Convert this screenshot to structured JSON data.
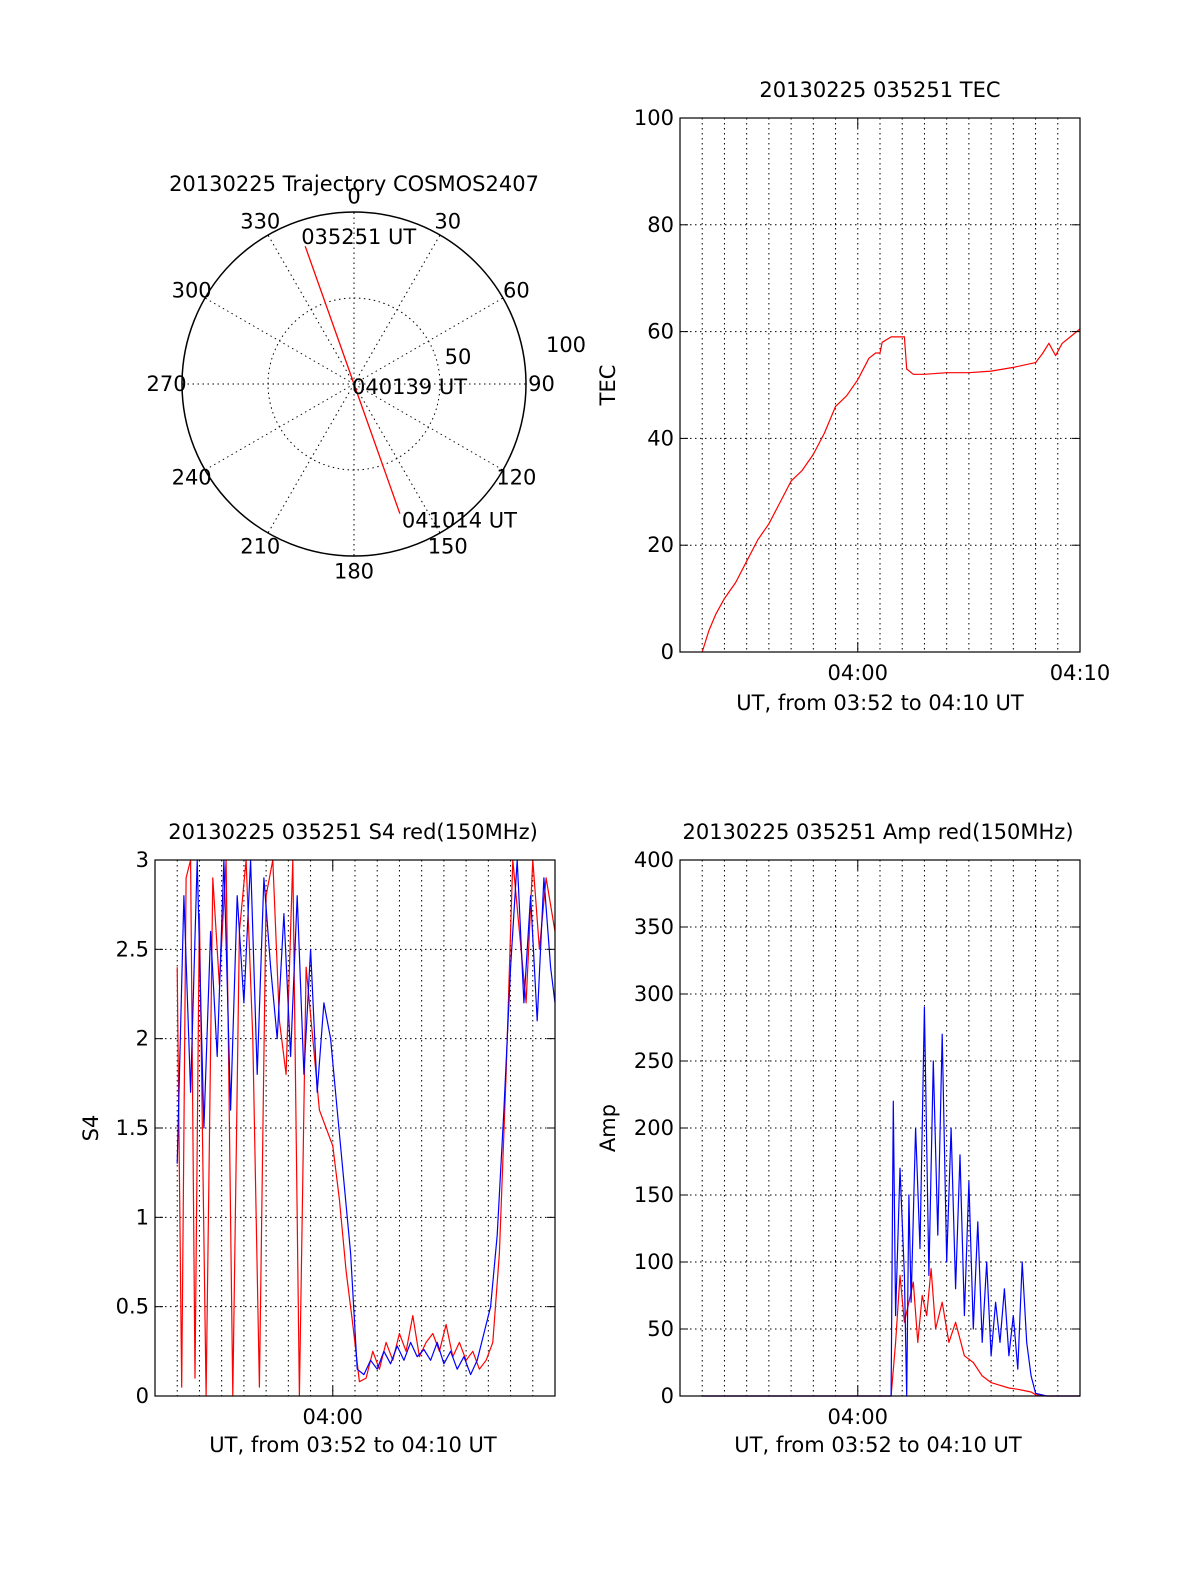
{
  "colors": {
    "red": "#ff0000",
    "blue": "#0000ff",
    "axis": "#000000",
    "background": "#ffffff"
  },
  "chart_data": [
    {
      "id": "polar",
      "type": "polar-trajectory",
      "title": "20130225 Trajectory COSMOS2407",
      "angle_labels": [
        "0",
        "30",
        "60",
        "90",
        "120",
        "150",
        "180",
        "210",
        "240",
        "270",
        "300",
        "330"
      ],
      "angles_deg": [
        0,
        30,
        60,
        90,
        120,
        150,
        180,
        210,
        240,
        270,
        300,
        330
      ],
      "radial_labels": [
        "50",
        "100"
      ],
      "radial_values": [
        50,
        100
      ],
      "rmax": 100,
      "point_labels": [
        "035251 UT",
        "040139 UT",
        "041014 UT"
      ],
      "trajectory": [
        {
          "az": 340.5,
          "r": 85
        },
        {
          "az": 340.5,
          "r": 3
        },
        {
          "az": 160.5,
          "r": 3
        },
        {
          "az": 160.5,
          "r": 80
        }
      ]
    },
    {
      "id": "tec",
      "type": "line",
      "title": "20130225 035251 TEC",
      "xlabel": "UT, from 03:52 to 04:10 UT",
      "ylabel": "TEC",
      "xlim": [
        232,
        250
      ],
      "ylim": [
        0,
        100
      ],
      "yticks": [
        0,
        20,
        40,
        60,
        80,
        100
      ],
      "ytick_labels": [
        "0",
        "20",
        "40",
        "60",
        "80",
        "100"
      ],
      "xticks": [
        240,
        250
      ],
      "xtick_labels": [
        "04:00",
        "04:10"
      ],
      "series": [
        {
          "color": "#ff0000",
          "x": [
            233.0,
            233.3,
            233.6,
            234.0,
            234.5,
            235.0,
            235.5,
            236.0,
            236.5,
            237.0,
            237.5,
            238.0,
            238.5,
            239.0,
            239.5,
            240.0,
            240.5,
            240.8,
            241.0,
            241.1,
            241.5,
            241.9,
            242.1,
            242.2,
            242.5,
            243.0,
            244.0,
            245.0,
            246.0,
            247.0,
            248.0,
            248.3,
            248.6,
            248.9,
            249.2,
            249.5,
            250.0
          ],
          "y": [
            0,
            4,
            7,
            10,
            13,
            17,
            21,
            24,
            28,
            32,
            34,
            37,
            41,
            46,
            48,
            51,
            55,
            56,
            56,
            58,
            59,
            59,
            59,
            53,
            52,
            52,
            52.3,
            52.3,
            52.6,
            53.3,
            54.2,
            55.8,
            57.8,
            55.5,
            57.8,
            58.8,
            60.5
          ]
        }
      ]
    },
    {
      "id": "s4",
      "type": "line",
      "title": "20130225 035251 S4 red(150MHz)",
      "xlabel": "UT, from 03:52 to 04:10 UT",
      "ylabel": "S4",
      "xlim": [
        232,
        250
      ],
      "ylim": [
        0,
        3
      ],
      "yticks": [
        0,
        0.5,
        1,
        1.5,
        2,
        2.5,
        3
      ],
      "ytick_labels": [
        "0",
        "0.5",
        "1",
        "1.5",
        "2",
        "2.5",
        "3"
      ],
      "xticks": [
        240
      ],
      "xtick_labels": [
        "04:00"
      ],
      "series": [
        {
          "color": "#ff0000",
          "x": [
            233.0,
            233.2,
            233.4,
            233.6,
            233.8,
            234.0,
            234.3,
            234.6,
            234.9,
            235.2,
            235.5,
            235.8,
            236.1,
            236.4,
            236.7,
            237.0,
            237.3,
            237.6,
            237.9,
            238.2,
            238.5,
            238.8,
            239.1,
            239.4,
            239.7,
            240.0,
            240.3,
            240.6,
            240.9,
            241.2,
            241.5,
            241.8,
            242.1,
            242.4,
            242.7,
            243.0,
            243.3,
            243.6,
            243.9,
            244.2,
            244.5,
            244.8,
            245.1,
            245.4,
            245.7,
            246.0,
            246.3,
            246.6,
            246.9,
            247.2,
            247.5,
            247.8,
            248.1,
            248.4,
            248.7,
            249.0,
            249.3,
            249.6,
            250.0
          ],
          "y": [
            2.4,
            0.05,
            2.9,
            3.0,
            0.1,
            2.7,
            0.0,
            2.9,
            2.3,
            3.0,
            0.0,
            2.6,
            3.0,
            2.0,
            0.05,
            2.8,
            3.0,
            2.1,
            1.8,
            3.0,
            0.0,
            2.4,
            2.0,
            1.6,
            1.5,
            1.4,
            1.1,
            0.7,
            0.4,
            0.08,
            0.1,
            0.25,
            0.15,
            0.3,
            0.2,
            0.35,
            0.25,
            0.45,
            0.22,
            0.3,
            0.35,
            0.25,
            0.4,
            0.22,
            0.3,
            0.2,
            0.25,
            0.15,
            0.2,
            0.3,
            0.8,
            1.8,
            3.0,
            2.6,
            2.2,
            3.0,
            2.5,
            2.9,
            2.6
          ]
        },
        {
          "color": "#0000ff",
          "x": [
            233.0,
            233.3,
            233.6,
            233.9,
            234.2,
            234.5,
            234.8,
            235.1,
            235.4,
            235.7,
            236.0,
            236.3,
            236.6,
            236.9,
            237.2,
            237.5,
            237.8,
            238.1,
            238.4,
            238.7,
            239.0,
            239.3,
            239.6,
            239.9,
            240.2,
            240.5,
            240.8,
            241.1,
            241.4,
            241.7,
            242.0,
            242.3,
            242.6,
            242.9,
            243.2,
            243.5,
            243.8,
            244.1,
            244.4,
            244.7,
            245.0,
            245.3,
            245.6,
            245.9,
            246.2,
            246.5,
            246.8,
            247.1,
            247.4,
            247.7,
            248.0,
            248.3,
            248.6,
            248.9,
            249.2,
            249.5,
            249.8,
            250.0
          ],
          "y": [
            1.3,
            2.8,
            1.7,
            3.0,
            1.5,
            2.6,
            1.9,
            3.0,
            1.6,
            2.8,
            2.2,
            3.0,
            1.8,
            2.9,
            2.4,
            2.0,
            2.7,
            1.9,
            2.8,
            1.8,
            2.5,
            1.7,
            2.2,
            2.0,
            1.6,
            1.2,
            0.8,
            0.15,
            0.12,
            0.2,
            0.15,
            0.25,
            0.18,
            0.28,
            0.2,
            0.3,
            0.22,
            0.26,
            0.2,
            0.3,
            0.18,
            0.25,
            0.15,
            0.22,
            0.12,
            0.2,
            0.35,
            0.5,
            0.9,
            1.6,
            2.4,
            3.0,
            2.2,
            2.8,
            2.1,
            2.9,
            2.4,
            2.2
          ]
        }
      ]
    },
    {
      "id": "amp",
      "type": "line",
      "title": "20130225 035251 Amp red(150MHz)",
      "xlabel": "UT, from 03:52 to 04:10 UT",
      "ylabel": "Amp",
      "xlim": [
        232,
        250
      ],
      "ylim": [
        0,
        400
      ],
      "yticks": [
        0,
        50,
        100,
        150,
        200,
        250,
        300,
        350,
        400
      ],
      "ytick_labels": [
        "0",
        "50",
        "100",
        "150",
        "200",
        "250",
        "300",
        "350",
        "400"
      ],
      "xticks": [
        240
      ],
      "xtick_labels": [
        "04:00"
      ],
      "series": [
        {
          "color": "#ff0000",
          "x": [
            233.0,
            238.0,
            241.5,
            241.7,
            241.9,
            242.1,
            242.3,
            242.5,
            242.7,
            242.9,
            243.1,
            243.3,
            243.5,
            243.8,
            244.1,
            244.4,
            244.8,
            245.2,
            245.6,
            246.0,
            246.4,
            246.8,
            247.2,
            247.5,
            247.8,
            248.0,
            248.5,
            249.0,
            250.0
          ],
          "y": [
            0,
            0,
            0,
            40,
            90,
            55,
            70,
            85,
            40,
            75,
            60,
            95,
            50,
            70,
            40,
            55,
            30,
            25,
            15,
            10,
            8,
            6,
            5,
            4,
            3,
            1,
            0,
            0,
            0
          ]
        },
        {
          "color": "#0000ff",
          "x": [
            233.0,
            238.0,
            241.5,
            241.6,
            241.7,
            241.9,
            242.1,
            242.2,
            242.3,
            242.4,
            242.6,
            242.8,
            243.0,
            243.2,
            243.4,
            243.6,
            243.8,
            244.0,
            244.2,
            244.4,
            244.6,
            244.8,
            245.0,
            245.2,
            245.4,
            245.6,
            245.8,
            246.0,
            246.2,
            246.4,
            246.6,
            246.8,
            247.0,
            247.2,
            247.4,
            247.6,
            247.8,
            248.0,
            248.5,
            250.0
          ],
          "y": [
            0,
            0,
            0,
            220,
            60,
            170,
            90,
            0,
            150,
            70,
            200,
            110,
            290,
            90,
            250,
            120,
            270,
            100,
            200,
            80,
            180,
            60,
            160,
            50,
            130,
            40,
            100,
            30,
            70,
            40,
            80,
            30,
            60,
            20,
            100,
            40,
            15,
            2,
            0,
            0
          ]
        }
      ]
    }
  ]
}
